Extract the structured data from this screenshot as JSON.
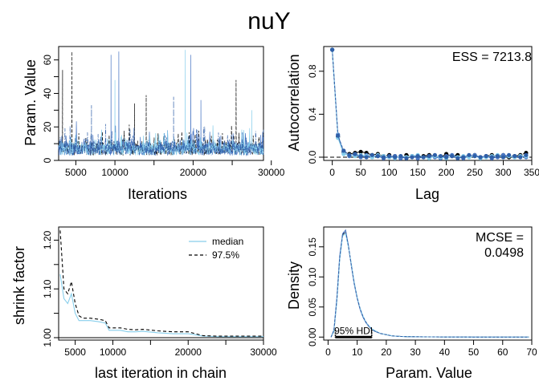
{
  "figure": {
    "title": "nuY"
  },
  "chart_data": [
    {
      "type": "line",
      "panel": "trace",
      "xlabel": "Iterations",
      "ylabel": "Param. Value",
      "xlim": [
        2800,
        29000
      ],
      "ylim": [
        0,
        68
      ],
      "xticks": [
        5000,
        10000,
        15000,
        20000,
        25000,
        30000
      ],
      "xtick_labels": [
        "5000",
        "10000",
        "",
        "20000",
        "",
        "30000"
      ],
      "yticks": [
        0,
        10,
        20,
        30,
        40,
        50,
        60
      ],
      "ytick_labels": [
        "0",
        "",
        "20",
        "",
        "40",
        "",
        "60"
      ],
      "chains": 4,
      "series_colors": [
        "#000000",
        "#4a77c4",
        "#87ceeb",
        "#2f5fa8"
      ],
      "spikes": [
        {
          "x": 4500,
          "y": 65,
          "chain": 0
        },
        {
          "x": 3300,
          "y": 54,
          "chain": 0
        },
        {
          "x": 9500,
          "y": 63,
          "chain": 1
        },
        {
          "x": 10500,
          "y": 65,
          "chain": 1
        },
        {
          "x": 10000,
          "y": 48,
          "chain": 2
        },
        {
          "x": 19000,
          "y": 66,
          "chain": 2
        },
        {
          "x": 19700,
          "y": 63,
          "chain": 1
        },
        {
          "x": 25500,
          "y": 48,
          "chain": 0
        },
        {
          "x": 14000,
          "y": 39,
          "chain": 0
        },
        {
          "x": 17500,
          "y": 38,
          "chain": 3
        },
        {
          "x": 21000,
          "y": 36,
          "chain": 1
        },
        {
          "x": 7000,
          "y": 33,
          "chain": 3
        },
        {
          "x": 12500,
          "y": 34,
          "chain": 0
        },
        {
          "x": 27500,
          "y": 30,
          "chain": 2
        }
      ]
    },
    {
      "type": "scatter",
      "panel": "autocorrelation",
      "xlabel": "Lag",
      "ylabel": "Autocorrelation",
      "annotation": "ESS = 7213.8",
      "xlim": [
        -15,
        350
      ],
      "ylim": [
        -0.03,
        1.03
      ],
      "xticks": [
        0,
        50,
        100,
        150,
        200,
        250,
        300,
        350
      ],
      "xtick_labels": [
        "0",
        "50",
        "100",
        "150",
        "200",
        "250",
        "300",
        "350"
      ],
      "yticks": [
        0.0,
        0.4,
        0.8
      ],
      "ytick_labels": [
        "0.0",
        "0.4",
        "0.8"
      ],
      "lags": [
        0,
        10,
        20,
        30,
        40,
        50,
        60,
        70,
        80,
        90,
        100,
        110,
        120,
        130,
        140,
        150,
        160,
        170,
        180,
        190,
        200,
        210,
        220,
        230,
        240,
        250,
        260,
        270,
        280,
        290,
        300,
        310,
        320,
        330,
        340
      ],
      "series": [
        {
          "color": "#000000",
          "values": [
            1.0,
            0.19,
            0.05,
            0.03,
            0.04,
            0.05,
            0.04,
            0.02,
            0.03,
            0.01,
            0.02,
            0.01,
            0.0,
            0.02,
            0.01,
            0.0,
            0.01,
            0.02,
            0.01,
            0.0,
            0.03,
            0.01,
            0.02,
            0.0,
            0.01,
            0.02,
            0.0,
            0.01,
            0.02,
            0.01,
            0.02,
            0.0,
            0.01,
            0.02,
            0.04
          ]
        },
        {
          "color": "#4a77c4",
          "values": [
            1.0,
            0.21,
            0.04,
            0.01,
            0.02,
            0.0,
            0.02,
            0.0,
            0.01,
            -0.01,
            0.0,
            0.01,
            -0.01,
            0.0,
            0.01,
            -0.01,
            0.0,
            0.01,
            0.0,
            -0.01,
            0.01,
            0.02,
            0.0,
            -0.01,
            0.01,
            0.02,
            0.0,
            0.01,
            -0.01,
            0.0,
            0.02,
            0.01,
            0.0,
            0.01,
            0.0
          ]
        },
        {
          "color": "#87ceeb",
          "values": [
            1.0,
            0.18,
            0.03,
            0.02,
            0.01,
            0.02,
            0.01,
            0.0,
            0.02,
            0.01,
            0.0,
            -0.01,
            0.01,
            0.0,
            0.01,
            0.02,
            0.0,
            -0.01,
            0.01,
            0.0,
            -0.01,
            0.01,
            0.0,
            0.01,
            0.0,
            0.01,
            -0.01,
            0.0,
            0.01,
            0.02,
            0.0,
            0.01,
            0.0,
            0.01,
            0.01
          ]
        },
        {
          "color": "#2f5fa8",
          "values": [
            1.0,
            0.2,
            0.06,
            0.02,
            0.03,
            0.01,
            0.0,
            0.02,
            0.01,
            0.0,
            0.01,
            0.0,
            0.01,
            -0.01,
            0.0,
            0.01,
            0.0,
            0.01,
            0.02,
            0.01,
            0.0,
            0.01,
            -0.01,
            0.0,
            0.02,
            0.01,
            0.0,
            0.01,
            0.0,
            0.01,
            0.0,
            0.02,
            0.01,
            0.0,
            0.02
          ]
        }
      ]
    },
    {
      "type": "line",
      "panel": "shrink",
      "xlabel": "last iteration in chain",
      "ylabel": "shrink factor",
      "xlim": [
        2800,
        30000
      ],
      "ylim": [
        0.995,
        1.227
      ],
      "xticks": [
        5000,
        10000,
        15000,
        20000,
        25000,
        30000
      ],
      "xtick_labels": [
        "5000",
        "10000",
        "",
        "20000",
        "",
        "30000"
      ],
      "yticks": [
        1.0,
        1.05,
        1.1,
        1.15,
        1.2
      ],
      "ytick_labels": [
        "1.00",
        "",
        "1.10",
        "",
        "1.20"
      ],
      "legend_position": "top-right",
      "series": [
        {
          "name": "median",
          "color": "#87ceeb",
          "dash": "solid",
          "x": [
            3000,
            3500,
            4000,
            4500,
            5000,
            5500,
            6000,
            7000,
            8000,
            9000,
            9500,
            10000,
            11000,
            12000,
            13000,
            14000,
            16000,
            18000,
            20000,
            22000,
            24000,
            26000,
            28000,
            30000
          ],
          "y": [
            1.13,
            1.08,
            1.07,
            1.09,
            1.05,
            1.035,
            1.035,
            1.035,
            1.033,
            1.03,
            1.015,
            1.015,
            1.015,
            1.012,
            1.012,
            1.013,
            1.01,
            1.008,
            1.008,
            1.003,
            1.002,
            1.002,
            1.002,
            1.002
          ]
        },
        {
          "name": "97.5%",
          "color": "#000000",
          "dash": "dashed",
          "x": [
            3000,
            3500,
            4000,
            4500,
            5000,
            5500,
            6000,
            7000,
            8000,
            9000,
            9500,
            10000,
            11000,
            12000,
            13000,
            14000,
            16000,
            18000,
            20000,
            22000,
            24000,
            26000,
            28000,
            30000
          ],
          "y": [
            1.22,
            1.1,
            1.09,
            1.115,
            1.07,
            1.045,
            1.04,
            1.04,
            1.038,
            1.035,
            1.02,
            1.02,
            1.02,
            1.017,
            1.016,
            1.017,
            1.014,
            1.012,
            1.012,
            1.004,
            1.003,
            1.003,
            1.003,
            1.003
          ]
        }
      ]
    },
    {
      "type": "line",
      "panel": "density",
      "xlabel": "Param. Value",
      "ylabel": "Density",
      "annotation_line1": "MCSE =",
      "annotation_line2": "0.0498",
      "hdi_label": "95% HDI",
      "hdi_range": [
        2.5,
        15
      ],
      "xlim": [
        -1.5,
        70
      ],
      "ylim": [
        -0.005,
        0.183
      ],
      "xticks": [
        0,
        10,
        20,
        30,
        40,
        50,
        60,
        70
      ],
      "xtick_labels": [
        "0",
        "10",
        "20",
        "30",
        "40",
        "50",
        "60",
        "70"
      ],
      "yticks": [
        0.0,
        0.05,
        0.1,
        0.15
      ],
      "ytick_labels": [
        "0.00",
        "0.05",
        "0.10",
        "0.15"
      ],
      "x": [
        1,
        2,
        3,
        4,
        5,
        6,
        7,
        8,
        9,
        10,
        11,
        12,
        13,
        14,
        15,
        16,
        18,
        20,
        22,
        25,
        30,
        35,
        40,
        50,
        60,
        69
      ],
      "series": [
        {
          "color": "#000000",
          "values": [
            0.0,
            0.01,
            0.06,
            0.13,
            0.17,
            0.175,
            0.15,
            0.12,
            0.09,
            0.065,
            0.047,
            0.034,
            0.025,
            0.018,
            0.013,
            0.01,
            0.006,
            0.004,
            0.002,
            0.001,
            0.0005,
            0.0003,
            0.0002,
            0.0001,
            0.0001,
            0.0
          ]
        },
        {
          "color": "#4a77c4",
          "values": [
            0.0,
            0.012,
            0.065,
            0.135,
            0.172,
            0.178,
            0.152,
            0.118,
            0.088,
            0.064,
            0.046,
            0.033,
            0.024,
            0.018,
            0.013,
            0.01,
            0.006,
            0.004,
            0.002,
            0.001,
            0.0005,
            0.0003,
            0.0002,
            0.0001,
            0.0001,
            0.0
          ]
        },
        {
          "color": "#87ceeb",
          "values": [
            0.0,
            0.009,
            0.058,
            0.128,
            0.168,
            0.172,
            0.149,
            0.121,
            0.091,
            0.066,
            0.048,
            0.035,
            0.025,
            0.019,
            0.014,
            0.011,
            0.006,
            0.004,
            0.002,
            0.001,
            0.0005,
            0.0003,
            0.0002,
            0.0001,
            0.0001,
            0.0
          ]
        },
        {
          "color": "#2f5fa8",
          "values": [
            0.0,
            0.011,
            0.062,
            0.132,
            0.171,
            0.176,
            0.151,
            0.119,
            0.089,
            0.065,
            0.047,
            0.034,
            0.025,
            0.018,
            0.013,
            0.01,
            0.006,
            0.004,
            0.002,
            0.001,
            0.0005,
            0.0003,
            0.0002,
            0.0001,
            0.0001,
            0.0
          ]
        }
      ]
    }
  ]
}
